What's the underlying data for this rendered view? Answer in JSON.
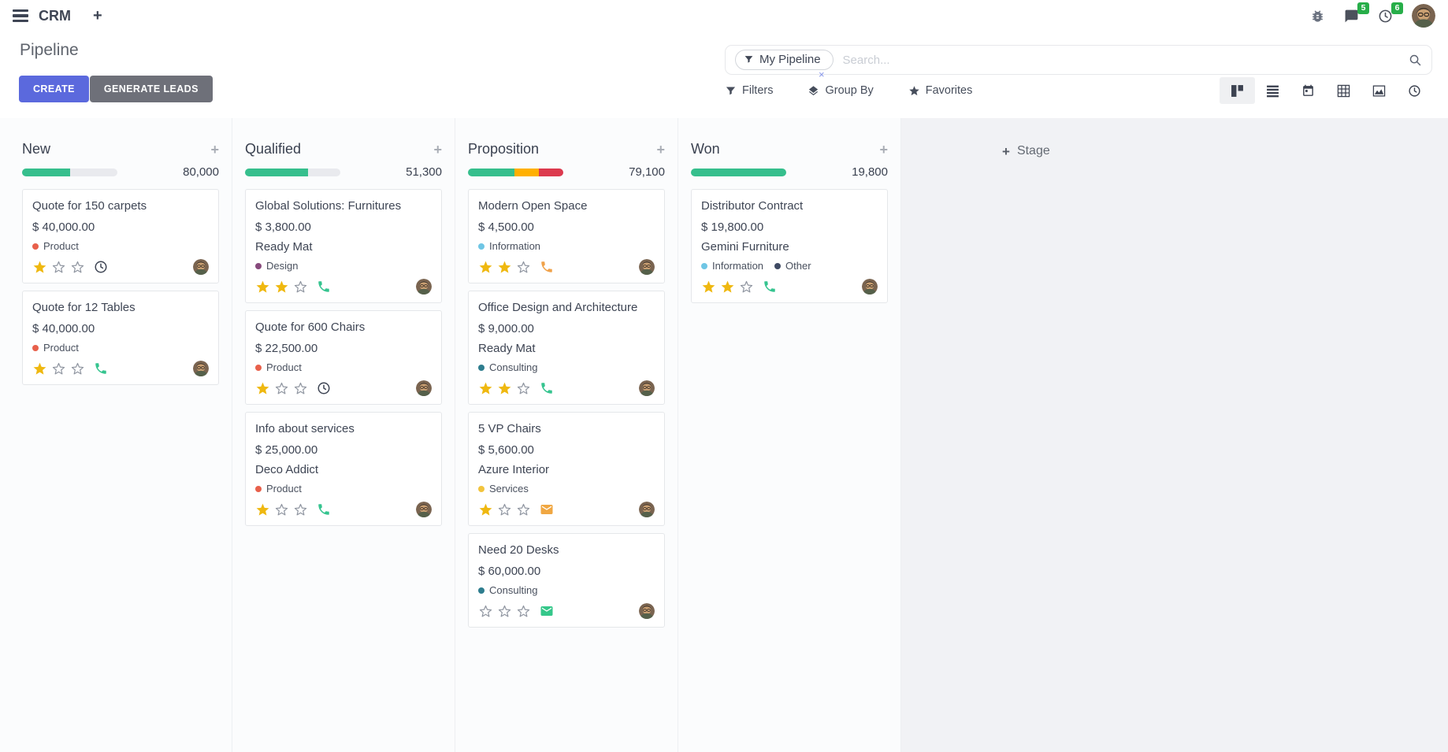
{
  "navbar": {
    "app_name": "CRM",
    "messages_badge": "5",
    "activities_badge": "6"
  },
  "control_panel": {
    "breadcrumb_title": "Pipeline",
    "create_label": "CREATE",
    "generate_label": "GENERATE LEADS",
    "search_facet": "My Pipeline",
    "facet_remove": "×",
    "search_placeholder": "Search...",
    "filters_label": "Filters",
    "group_by_label": "Group By",
    "favorites_label": "Favorites",
    "view_switcher": [
      "kanban",
      "list",
      "calendar",
      "pivot",
      "graph",
      "activity"
    ],
    "active_view": "kanban"
  },
  "colors": {
    "primary_button": "#5b69dd",
    "secondary_button": "#6e7079",
    "badge_green": "#27ae49",
    "bar_green": "#36bf8d",
    "bar_orange": "#ffb000",
    "bar_red": "#dc3a4e",
    "bar_empty": "#e9eaee",
    "star_yellow": "#efb810"
  },
  "board": {
    "add_stage_label": "Stage",
    "columns": [
      {
        "name": "New",
        "amount": "80,000",
        "segments": [
          {
            "color": "#36bf8d",
            "pct": 50
          }
        ],
        "cards": [
          {
            "title": "Quote for 150 carpets",
            "amount": "$ 40,000.00",
            "tags": [
              {
                "label": "Product",
                "color": "#e8604b"
              }
            ],
            "stars": 1,
            "activity_icon": "clock-icon",
            "activity_color": "#3e4554"
          },
          {
            "title": "Quote for 12 Tables",
            "amount": "$ 40,000.00",
            "tags": [
              {
                "label": "Product",
                "color": "#e8604b"
              }
            ],
            "stars": 1,
            "activity_icon": "phone-icon",
            "activity_color": "#35c48f"
          }
        ]
      },
      {
        "name": "Qualified",
        "amount": "51,300",
        "segments": [
          {
            "color": "#36bf8d",
            "pct": 66
          }
        ],
        "cards": [
          {
            "title": "Global Solutions: Furnitures",
            "amount": "$ 3,800.00",
            "company": "Ready Mat",
            "tags": [
              {
                "label": "Design",
                "color": "#874a7c"
              }
            ],
            "stars": 2,
            "activity_icon": "phone-icon",
            "activity_color": "#35c48f"
          },
          {
            "title": "Quote for 600 Chairs",
            "amount": "$ 22,500.00",
            "tags": [
              {
                "label": "Product",
                "color": "#e8604b"
              }
            ],
            "stars": 1,
            "activity_icon": "clock-icon",
            "activity_color": "#3e4554"
          },
          {
            "title": "Info about services",
            "amount": "$ 25,000.00",
            "company": "Deco Addict",
            "tags": [
              {
                "label": "Product",
                "color": "#e8604b"
              }
            ],
            "stars": 1,
            "activity_icon": "phone-icon",
            "activity_color": "#35c48f"
          }
        ]
      },
      {
        "name": "Proposition",
        "amount": "79,100",
        "segments": [
          {
            "color": "#36bf8d",
            "pct": 49
          },
          {
            "color": "#ffb000",
            "pct": 25
          },
          {
            "color": "#dc3a4e",
            "pct": 26
          }
        ],
        "cards": [
          {
            "title": "Modern Open Space",
            "amount": "$ 4,500.00",
            "tags": [
              {
                "label": "Information",
                "color": "#6fc6e5"
              }
            ],
            "stars": 2,
            "activity_icon": "phone-icon",
            "activity_color": "#f0a24a"
          },
          {
            "title": "Office Design and Architecture",
            "amount": "$ 9,000.00",
            "company": "Ready Mat",
            "tags": [
              {
                "label": "Consulting",
                "color": "#2e7d8e"
              }
            ],
            "stars": 2,
            "activity_icon": "phone-icon",
            "activity_color": "#35c48f"
          },
          {
            "title": "5 VP Chairs",
            "amount": "$ 5,600.00",
            "company": "Azure Interior",
            "tags": [
              {
                "label": "Services",
                "color": "#f2c43d"
              }
            ],
            "stars": 1,
            "activity_icon": "envelope-icon",
            "activity_color": "#f0a742"
          },
          {
            "title": "Need 20 Desks",
            "amount": "$ 60,000.00",
            "tags": [
              {
                "label": "Consulting",
                "color": "#2e7d8e"
              }
            ],
            "stars": 0,
            "activity_icon": "envelope-icon",
            "activity_color": "#35c78a"
          }
        ]
      },
      {
        "name": "Won",
        "amount": "19,800",
        "segments": [
          {
            "color": "#36bf8d",
            "pct": 100
          }
        ],
        "cards": [
          {
            "title": "Distributor Contract",
            "amount": "$ 19,800.00",
            "company": "Gemini Furniture",
            "tags": [
              {
                "label": "Information",
                "color": "#6fc6e5"
              },
              {
                "label": "Other",
                "color": "#3f4a63"
              }
            ],
            "stars": 2,
            "activity_icon": "phone-icon",
            "activity_color": "#35c48f"
          }
        ]
      }
    ]
  }
}
